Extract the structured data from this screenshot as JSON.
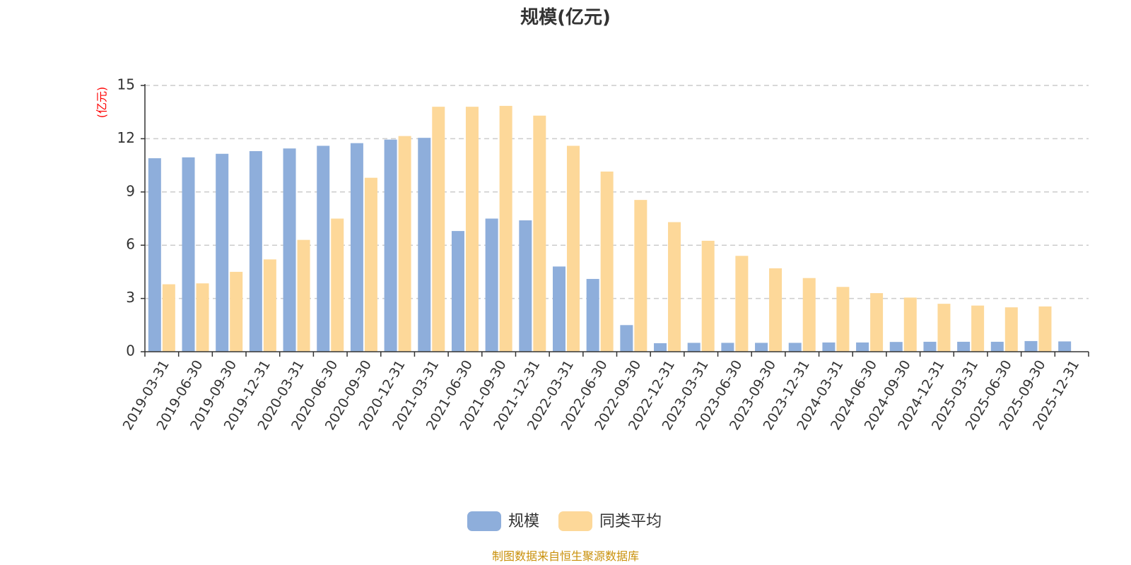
{
  "chart_data": {
    "type": "bar",
    "title": "规模(亿元)",
    "ylabel": "(亿元)",
    "ylim": [
      0,
      15
    ],
    "yticks": [
      "0",
      "3",
      "6",
      "9",
      "12",
      "15"
    ],
    "grid": true,
    "legend_position": "bottom",
    "categories": [
      "2019-03-31",
      "2019-06-30",
      "2019-09-30",
      "2019-12-31",
      "2020-03-31",
      "2020-06-30",
      "2020-09-30",
      "2020-12-31",
      "2021-03-31",
      "2021-06-30",
      "2021-09-30",
      "2021-12-31",
      "2022-03-31",
      "2022-06-30",
      "2022-09-30",
      "2022-12-31",
      "2023-03-31",
      "2023-06-30",
      "2023-09-30",
      "2023-12-31",
      "2024-03-31",
      "2024-06-30",
      "2024-09-30",
      "2024-12-31",
      "2025-03-31",
      "2025-06-30",
      "2025-09-30",
      "2025-12-31"
    ],
    "series": [
      {
        "name": "规模",
        "color": "#8eaedb",
        "values": [
          10.9,
          10.95,
          11.15,
          11.3,
          11.45,
          11.6,
          11.75,
          11.95,
          12.05,
          6.8,
          7.5,
          7.4,
          4.8,
          4.1,
          1.5,
          0.48,
          0.5,
          0.5,
          0.5,
          0.5,
          0.52,
          0.52,
          0.55,
          0.56,
          0.56,
          0.56,
          0.6,
          0.58
        ]
      },
      {
        "name": "同类平均",
        "color": "#fdd899",
        "values": [
          3.8,
          3.85,
          4.5,
          5.2,
          6.3,
          7.5,
          9.8,
          12.15,
          13.8,
          13.8,
          13.85,
          13.3,
          11.6,
          10.15,
          8.55,
          7.3,
          6.25,
          5.4,
          4.7,
          4.15,
          3.65,
          3.3,
          3.05,
          2.7,
          2.6,
          2.5,
          2.55,
          null
        ]
      }
    ]
  },
  "source_text": "制图数据来自恒生聚源数据库",
  "colors": {
    "unit_label": "#ff0000",
    "source_text": "#c9900a",
    "axis": "#333333",
    "grid": "#cccccc"
  }
}
